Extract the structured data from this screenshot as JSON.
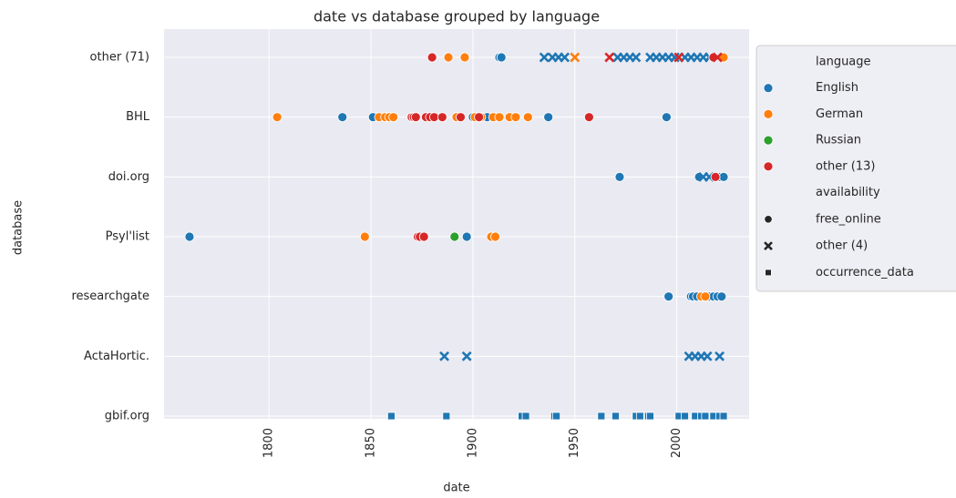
{
  "chart_data": {
    "type": "scatter",
    "title": "date vs database grouped by language",
    "x_label": "date",
    "y_label": "database",
    "categories": [
      "other (71)",
      "BHL",
      "doi.org",
      "Psyl'list",
      "researchgate",
      "ActaHortic.",
      "gbif.org"
    ],
    "xlim": [
      1748.5,
      2035.5
    ],
    "xticks": [
      1800,
      1850,
      1900,
      1950,
      2000
    ],
    "grid": true,
    "legend_position": "outside-right",
    "hue_title": "language",
    "hue": [
      {
        "name": "English",
        "color": "#1f77b4"
      },
      {
        "name": "German",
        "color": "#ff7f0e"
      },
      {
        "name": "Russian",
        "color": "#2ca02c"
      },
      {
        "name": "other (13)",
        "color": "#d62728"
      }
    ],
    "style_title": "availability",
    "styles": [
      {
        "name": "free_online",
        "marker": "circle"
      },
      {
        "name": "other (4)",
        "marker": "x"
      },
      {
        "name": "occurrence_data",
        "marker": "square"
      }
    ],
    "series": [
      {
        "hue": 0,
        "style": 0,
        "x": [
          1913,
          1914,
          1836,
          1851,
          1900,
          1907,
          1937,
          1995,
          1972,
          2011,
          2021,
          2023,
          1761,
          1897,
          1996,
          2007,
          2008,
          2010,
          2016,
          2018,
          2020,
          2022
        ],
        "y": [
          0,
          0,
          1,
          1,
          1,
          1,
          1,
          1,
          2,
          2,
          2,
          2,
          3,
          3,
          4,
          4,
          4,
          4,
          4,
          4,
          4,
          4
        ]
      },
      {
        "hue": 0,
        "style": 1,
        "x": [
          1935,
          1939,
          1942,
          1945,
          1971,
          1974,
          1977,
          1980,
          1987,
          1990,
          1993,
          1996,
          1999,
          2004,
          2007,
          2010,
          2013,
          2016,
          2013,
          2016,
          1886,
          1897,
          2006,
          2009,
          2012,
          2015,
          2021
        ],
        "y": [
          0,
          0,
          0,
          0,
          0,
          0,
          0,
          0,
          0,
          0,
          0,
          0,
          0,
          0,
          0,
          0,
          0,
          0,
          2,
          2,
          5,
          5,
          5,
          5,
          5,
          5,
          5
        ]
      },
      {
        "hue": 0,
        "style": 2,
        "x": [
          1860,
          1887,
          1924,
          1926,
          1940,
          1941,
          1963,
          1970,
          1980,
          1982,
          1986,
          1987,
          2001,
          2004,
          2009,
          2012,
          2014,
          2018,
          2021,
          2023
        ],
        "y": [
          6,
          6,
          6,
          6,
          6,
          6,
          6,
          6,
          6,
          6,
          6,
          6,
          6,
          6,
          6,
          6,
          6,
          6,
          6,
          6
        ]
      },
      {
        "hue": 1,
        "style": 0,
        "x": [
          1888,
          1896,
          2023,
          1804,
          1854,
          1857,
          1859,
          1861,
          1892,
          1901,
          1904,
          1910,
          1913,
          1918,
          1921,
          1927,
          1847,
          1909,
          1911,
          2012,
          2014
        ],
        "y": [
          0,
          0,
          0,
          1,
          1,
          1,
          1,
          1,
          1,
          1,
          1,
          1,
          1,
          1,
          1,
          1,
          3,
          3,
          3,
          4,
          4
        ]
      },
      {
        "hue": 1,
        "style": 1,
        "x": [
          1950
        ],
        "y": [
          0
        ]
      },
      {
        "hue": 2,
        "style": 0,
        "x": [
          1891
        ],
        "y": [
          3
        ]
      },
      {
        "hue": 3,
        "style": 0,
        "x": [
          1880,
          2018,
          1870,
          1871,
          1872,
          1877,
          1879,
          1881,
          1885,
          1894,
          1903,
          1957,
          2019,
          1873,
          1874,
          1876
        ],
        "y": [
          0,
          0,
          1,
          1,
          1,
          1,
          1,
          1,
          1,
          1,
          1,
          1,
          2,
          3,
          3,
          3
        ]
      },
      {
        "hue": 3,
        "style": 1,
        "x": [
          1967,
          2001,
          2020
        ],
        "y": [
          0,
          0,
          0
        ]
      }
    ]
  }
}
